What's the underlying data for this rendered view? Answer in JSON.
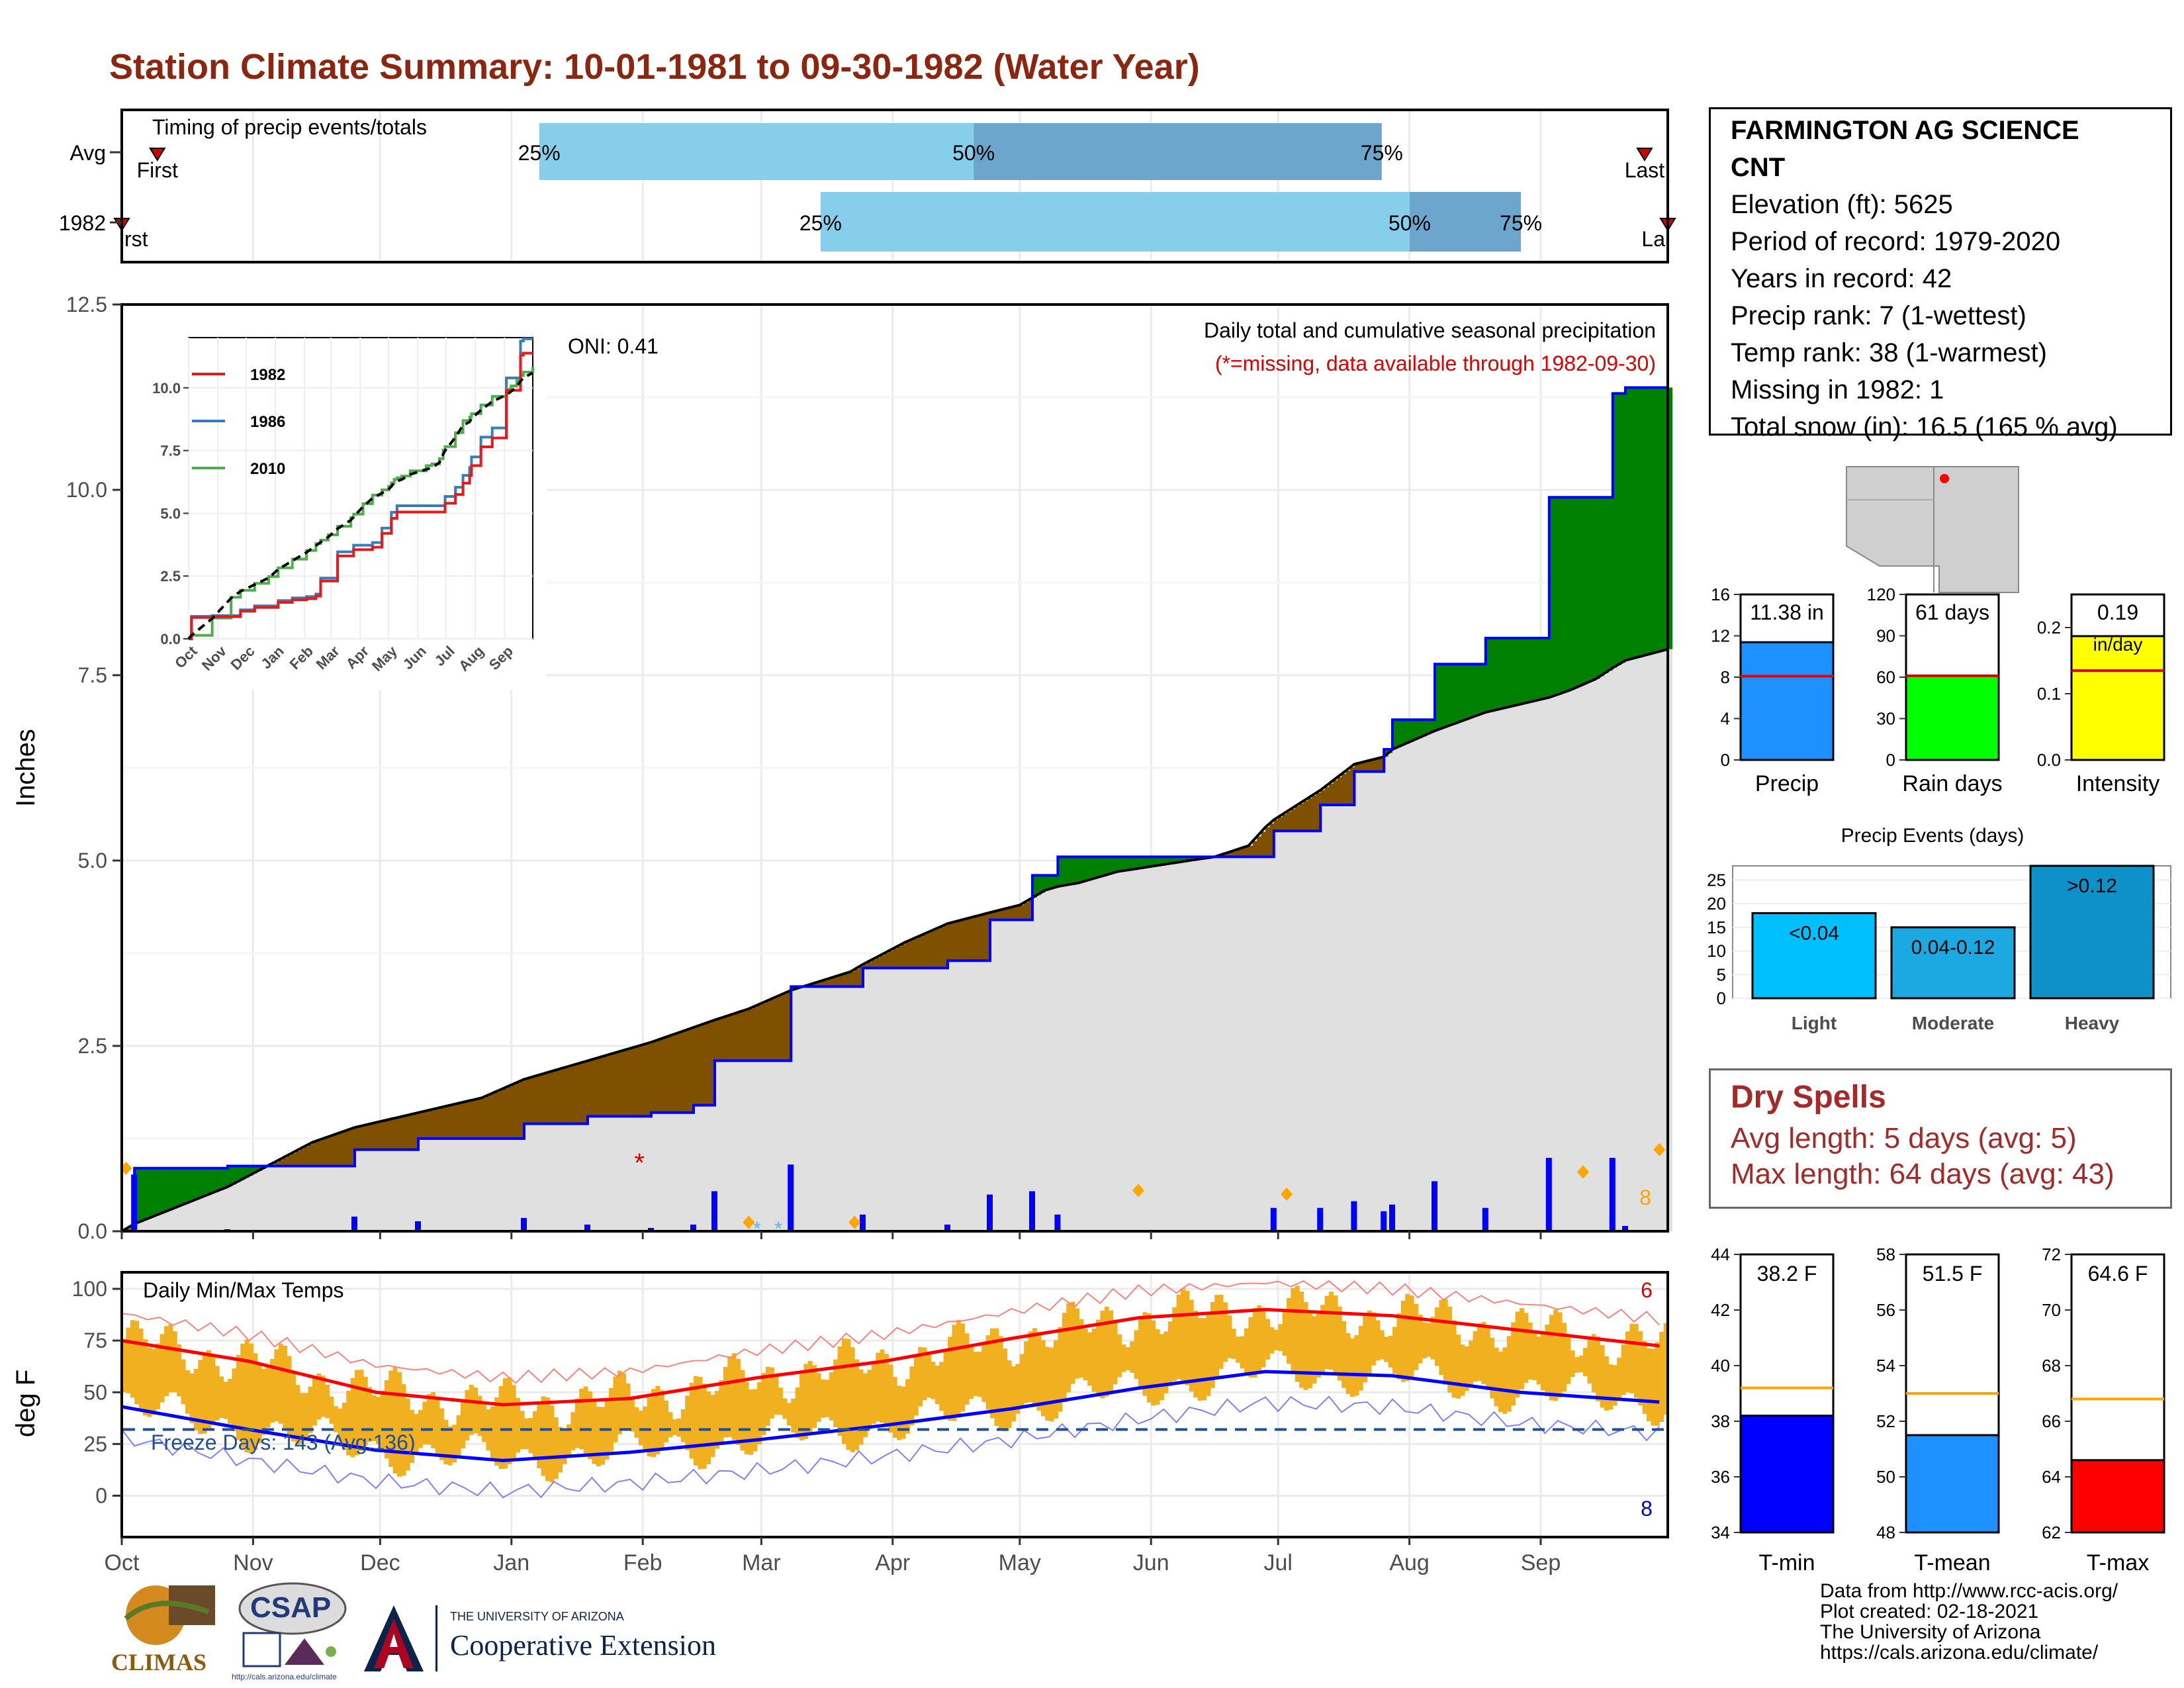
{
  "title": "Station Climate Summary: 10-01-1981 to 09-30-1982 (Water Year)",
  "timing": {
    "label": "Timing of precip events/totals",
    "rows": [
      "Avg",
      "1982"
    ],
    "avg": {
      "p25": 0.27,
      "p50": 0.551,
      "p75": 0.815,
      "first": 0.023,
      "last": 0.985
    },
    "cur": {
      "p25": 0.452,
      "p50": 0.833,
      "p75": 0.905,
      "first": 0.0,
      "last": 1.0
    },
    "pct_labels": [
      "25%",
      "50%",
      "75%"
    ],
    "first_label": "First",
    "last_label": "Last",
    "first_label_clipped": "rst",
    "last_label_clipped": "La"
  },
  "precip_panel": {
    "ylabel": "Inches",
    "yticks": [
      "0.0",
      "2.5",
      "5.0",
      "7.5",
      "10.0",
      "12.5"
    ],
    "title": "Daily total and cumulative seasonal precipitation",
    "subtitle": "(*=missing, data available through 1982-09-30)",
    "oni": "ONI: 0.41",
    "count_label": "8",
    "missing_marker": "*",
    "colors": {
      "above": "#008000",
      "below": "#7f5000",
      "normal": "#e0e0e0",
      "cum": "#0000ff",
      "daily": "#0000ff",
      "snow": "#5ab4f5",
      "event": "#ffa500"
    }
  },
  "inset": {
    "yticks": [
      "0.0",
      "2.5",
      "5.0",
      "7.5",
      "10.0"
    ],
    "months": [
      "Oct",
      "Nov",
      "Dec",
      "Jan",
      "Feb",
      "Mar",
      "Apr",
      "May",
      "Jun",
      "Jul",
      "Aug",
      "Sep"
    ],
    "legend": [
      {
        "name": "1982",
        "color": "#e41a1c"
      },
      {
        "name": "1986",
        "color": "#377eb8"
      },
      {
        "name": "2010",
        "color": "#4daf4a"
      }
    ]
  },
  "temp_panel": {
    "ylabel": "deg F",
    "title": "Daily Min/Max Temps",
    "yticks": [
      "0",
      "25",
      "50",
      "75",
      "100"
    ],
    "freeze_label": "Freeze Days: 143 (Avg:136)",
    "max_count": "6",
    "min_count": "8"
  },
  "months": [
    "Oct",
    "Nov",
    "Dec",
    "Jan",
    "Feb",
    "Mar",
    "Apr",
    "May",
    "Jun",
    "Jul",
    "Aug",
    "Sep"
  ],
  "station": {
    "name_line1": "FARMINGTON AG SCIENCE",
    "name_line2": "CNT",
    "elevation": "Elevation (ft): 5625",
    "period": "Period of record: 1979-2020",
    "years": "Years in record: 42",
    "precip_rank": "Precip rank: 7 (1-wettest)",
    "temp_rank": "Temp rank: 38 (1-warmest)",
    "missing": "Missing in 1982: 1",
    "snow": "Total snow (in): 16.5 (165 % avg)"
  },
  "summary_bars": [
    {
      "label": "Precip",
      "value_label": "11.38 in",
      "value": 11.38,
      "avg": 8.1,
      "ymax": 16,
      "yticks": [
        "0",
        "4",
        "8",
        "12",
        "16"
      ],
      "color": "#1e90ff"
    },
    {
      "label": "Rain days",
      "value_label": "61 days",
      "value": 61,
      "avg": 61,
      "ymax": 120,
      "yticks": [
        "0",
        "30",
        "60",
        "90",
        "120"
      ],
      "color": "#00ff00"
    },
    {
      "label": "Intensity",
      "value_label": "0.19",
      "value_unit": "in/day",
      "value": 0.187,
      "avg": 0.135,
      "ymax": 0.25,
      "yticks": [
        "0.0",
        "0.1",
        "0.2"
      ],
      "color": "#ffff00"
    }
  ],
  "precip_events": {
    "title": "Precip Events (days)",
    "yticks": [
      "0",
      "5",
      "10",
      "15",
      "20",
      "25"
    ],
    "bars": [
      {
        "category": "Light",
        "label": "<0.04",
        "value": 18,
        "color": "#00bfff"
      },
      {
        "category": "Moderate",
        "label": "0.04-0.12",
        "value": 15,
        "color": "#1ca9e1"
      },
      {
        "category": "Heavy",
        "label": ">0.12",
        "value": 28,
        "color": "#0e90c8"
      }
    ]
  },
  "dry_spells": {
    "title": "Dry Spells",
    "avg": "Avg length: 5 days (avg: 5)",
    "max": "Max length: 64 days (avg: 43)"
  },
  "temp_bars": [
    {
      "label": "T-min",
      "value_label": "38.2 F",
      "value": 38.2,
      "avg": 39.2,
      "ymin": 34,
      "ymax": 44,
      "yticks": [
        "34",
        "36",
        "38",
        "40",
        "42",
        "44"
      ],
      "color": "#0000ff"
    },
    {
      "label": "T-mean",
      "value_label": "51.5 F",
      "value": 51.5,
      "avg": 53.0,
      "ymin": 48,
      "ymax": 58,
      "yticks": [
        "48",
        "50",
        "52",
        "54",
        "56",
        "58"
      ],
      "color": "#1e90ff"
    },
    {
      "label": "T-max",
      "value_label": "64.6 F",
      "value": 64.6,
      "avg": 66.8,
      "ymin": 62,
      "ymax": 72,
      "yticks": [
        "62",
        "64",
        "66",
        "68",
        "70",
        "72"
      ],
      "color": "#ff0000"
    }
  ],
  "credits": [
    "Data from http://www.rcc-acis.org/",
    "Plot created: 02-18-2021",
    "The University of Arizona",
    "https://cals.arizona.edu/climate/"
  ],
  "logos": {
    "climas": "CLIMAS",
    "csap": "CSAP",
    "csap_url": "http://cals.arizona.edu/climate",
    "ua_small": "THE UNIVERSITY OF ARIZONA",
    "ua_big": "Cooperative Extension"
  },
  "chart_data": [
    {
      "type": "bar",
      "title": "Timing of precip events/totals",
      "categories": [
        "Avg",
        "1982"
      ],
      "series": [
        {
          "name": "25%",
          "values": [
            0.27,
            0.452
          ]
        },
        {
          "name": "50%",
          "values": [
            0.551,
            0.833
          ]
        },
        {
          "name": "75%",
          "values": [
            0.815,
            0.905
          ]
        }
      ]
    },
    {
      "type": "area",
      "title": "Daily total and cumulative seasonal precipitation",
      "ylabel": "Inches",
      "ylim": [
        0,
        12.5
      ],
      "x_days": [
        0,
        3,
        25,
        45,
        55,
        70,
        85,
        95,
        110,
        125,
        135,
        140,
        148,
        158,
        172,
        175,
        185,
        195,
        205,
        212,
        215,
        218,
        221,
        226,
        235,
        252,
        258,
        266,
        270,
        272,
        283,
        291,
        298,
        300,
        310,
        322,
        337,
        342,
        348,
        352,
        355,
        365
      ],
      "series": [
        {
          "name": "1982 cumulative",
          "values": [
            0.0,
            0.85,
            0.88,
            0.88,
            1.1,
            1.25,
            1.25,
            1.45,
            1.55,
            1.6,
            1.7,
            2.3,
            2.3,
            3.3,
            3.3,
            3.55,
            3.55,
            3.65,
            4.2,
            4.2,
            4.8,
            4.8,
            5.05,
            5.05,
            5.05,
            5.05,
            5.05,
            5.05,
            5.05,
            5.4,
            5.75,
            6.2,
            6.5,
            6.9,
            7.65,
            8.0,
            9.9,
            9.9,
            9.9,
            11.3,
            11.38,
            11.38
          ]
        },
        {
          "name": "Average cumulative",
          "values": [
            0.0,
            0.1,
            0.6,
            1.2,
            1.4,
            1.6,
            1.8,
            2.05,
            2.3,
            2.55,
            2.75,
            2.85,
            3.0,
            3.25,
            3.5,
            3.6,
            3.9,
            4.15,
            4.3,
            4.4,
            4.5,
            4.6,
            4.65,
            4.7,
            4.85,
            5.0,
            5.05,
            5.2,
            5.45,
            5.55,
            5.95,
            6.3,
            6.4,
            6.5,
            6.75,
            7.0,
            7.2,
            7.3,
            7.45,
            7.6,
            7.7,
            7.85
          ]
        }
      ]
    },
    {
      "type": "line",
      "title": "Daily Min/Max Temps",
      "ylabel": "deg F",
      "ylim": [
        -20,
        108
      ],
      "x_days": [
        0,
        30,
        60,
        90,
        120,
        150,
        180,
        210,
        240,
        270,
        300,
        330,
        365
      ],
      "series": [
        {
          "name": "Avg max",
          "values": [
            75,
            65,
            50,
            44,
            47,
            57,
            65,
            76,
            86,
            90,
            87,
            80,
            72
          ]
        },
        {
          "name": "Avg min",
          "values": [
            43,
            32,
            22,
            17,
            21,
            27,
            34,
            42,
            52,
            60,
            58,
            50,
            45
          ]
        }
      ]
    },
    {
      "type": "bar",
      "title": "Precip Events (days)",
      "categories": [
        "Light",
        "Moderate",
        "Heavy"
      ],
      "values": [
        18,
        15,
        28
      ]
    }
  ]
}
